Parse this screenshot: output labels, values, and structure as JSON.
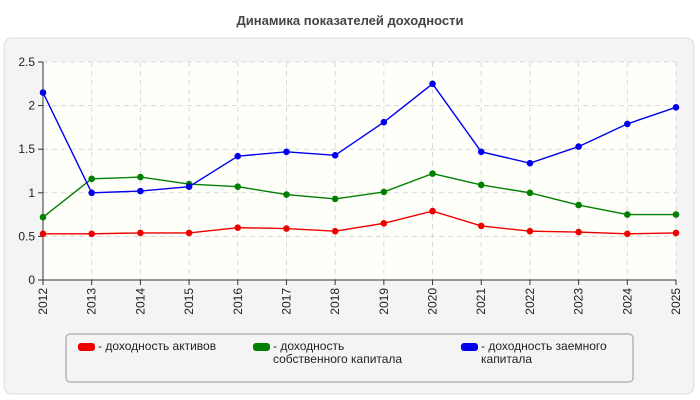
{
  "chart_data": {
    "type": "line",
    "title": "Динамика показателей доходности",
    "categories": [
      "2012",
      "2013",
      "2014",
      "2015",
      "2016",
      "2017",
      "2018",
      "2019",
      "2020",
      "2021",
      "2022",
      "2023",
      "2024",
      "2025"
    ],
    "ylim": [
      0,
      2.5
    ],
    "yticks": [
      "0",
      "0.5",
      "1",
      "1.5",
      "2",
      "2.5"
    ],
    "grid": true,
    "legend_position": "bottom",
    "series": [
      {
        "name": "- доходность активов",
        "color": "#ee0000",
        "values": [
          0.53,
          0.53,
          0.54,
          0.54,
          0.6,
          0.59,
          0.56,
          0.65,
          0.79,
          0.62,
          0.56,
          0.55,
          0.53,
          0.54
        ]
      },
      {
        "name": "- доходность собственного капитала",
        "color": "#008000",
        "values": [
          0.72,
          1.16,
          1.18,
          1.1,
          1.07,
          0.98,
          0.93,
          1.01,
          1.22,
          1.09,
          1.0,
          0.86,
          0.75,
          0.75
        ]
      },
      {
        "name": "- доходность заемного капитала",
        "color": "#0000ee",
        "values": [
          2.15,
          1.0,
          1.02,
          1.07,
          1.42,
          1.47,
          1.43,
          1.81,
          2.25,
          1.47,
          1.34,
          1.53,
          1.79,
          1.98
        ]
      }
    ]
  }
}
